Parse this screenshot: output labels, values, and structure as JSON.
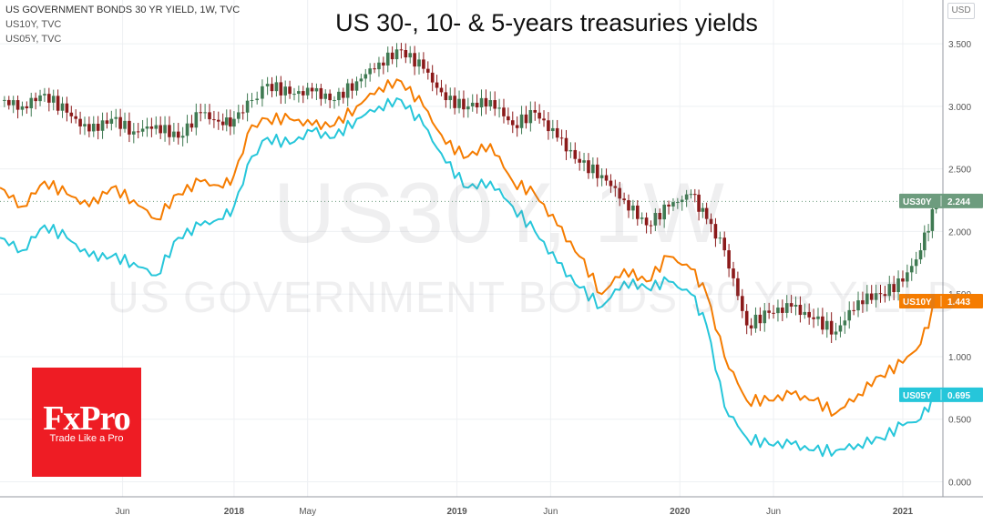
{
  "header": {
    "title": "US 30-, 10- & 5-years treasuries yields",
    "legend": [
      "US GOVERNMENT BONDS 30 YR YIELD, 1W, TVC",
      "US10Y, TVC",
      "US05Y, TVC"
    ]
  },
  "watermark": {
    "symbol": "US30Y, 1W",
    "name": "US GOVERNMENT BONDS 30 YR YIELD"
  },
  "logo": {
    "brand": "FxPro",
    "tagline": "Trade Like a Pro"
  },
  "currency_label": "USD",
  "colors": {
    "us30y": "#6d9c7e",
    "us10y": "#f57c00",
    "us05y": "#26c6da",
    "candle_up": "#3f7a52",
    "candle_down": "#8b1a1a",
    "logo_bg": "#ee1c24"
  },
  "chart_data": {
    "type": "line",
    "title": "US 30-, 10- & 5-years treasuries yields",
    "x_labels": [
      "Jun",
      "2018",
      "May",
      "2019",
      "Jun",
      "2020",
      "Jun",
      "2021"
    ],
    "x_label_pos": [
      0.5,
      1.0,
      1.33,
      2.0,
      2.42,
      3.0,
      3.42,
      4.0
    ],
    "x_range": [
      -0.05,
      4.18
    ],
    "ylim": [
      -0.12,
      3.85
    ],
    "y_ticks": [
      0.0,
      0.5,
      1.0,
      1.5,
      2.0,
      2.5,
      3.0,
      3.5
    ],
    "y_tick_labels": [
      "0.000",
      "0.500",
      "1.000",
      "1.500",
      "2.000",
      "2.500",
      "3.000",
      "3.500"
    ],
    "grid": true,
    "series": [
      {
        "name": "US30Y",
        "style": "candlestick",
        "last_value": "2.244",
        "x": [
          -0.05,
          0.05,
          0.15,
          0.25,
          0.35,
          0.45,
          0.55,
          0.65,
          0.75,
          0.85,
          0.95,
          1.0,
          1.08,
          1.15,
          1.25,
          1.35,
          1.45,
          1.55,
          1.65,
          1.75,
          1.85,
          1.95,
          2.05,
          2.15,
          2.25,
          2.35,
          2.45,
          2.55,
          2.65,
          2.75,
          2.85,
          2.95,
          3.05,
          3.12,
          3.2,
          3.3,
          3.4,
          3.5,
          3.6,
          3.7,
          3.8,
          3.9,
          4.0,
          4.08,
          4.15
        ],
        "y": [
          3.05,
          3.0,
          3.1,
          2.95,
          2.8,
          2.9,
          2.8,
          2.85,
          2.75,
          2.95,
          2.85,
          2.9,
          3.05,
          3.18,
          3.1,
          3.12,
          3.05,
          3.2,
          3.35,
          3.45,
          3.3,
          3.05,
          3.0,
          3.05,
          2.85,
          2.95,
          2.75,
          2.55,
          2.45,
          2.25,
          2.05,
          2.2,
          2.3,
          2.1,
          1.85,
          1.25,
          1.35,
          1.4,
          1.3,
          1.2,
          1.45,
          1.5,
          1.6,
          1.85,
          2.24
        ]
      },
      {
        "name": "US10Y",
        "style": "line",
        "last_value": "1.443",
        "x": [
          -0.05,
          0.05,
          0.15,
          0.25,
          0.35,
          0.45,
          0.55,
          0.65,
          0.75,
          0.85,
          0.95,
          1.0,
          1.08,
          1.15,
          1.25,
          1.35,
          1.45,
          1.55,
          1.65,
          1.75,
          1.85,
          1.95,
          2.05,
          2.15,
          2.25,
          2.35,
          2.45,
          2.55,
          2.65,
          2.75,
          2.85,
          2.95,
          3.05,
          3.12,
          3.2,
          3.3,
          3.4,
          3.5,
          3.6,
          3.7,
          3.8,
          3.9,
          4.0,
          4.08,
          4.15
        ],
        "y": [
          2.35,
          2.2,
          2.4,
          2.3,
          2.2,
          2.35,
          2.25,
          2.1,
          2.3,
          2.4,
          2.35,
          2.45,
          2.85,
          2.9,
          2.9,
          2.85,
          2.85,
          3.0,
          3.15,
          3.2,
          3.0,
          2.7,
          2.6,
          2.7,
          2.4,
          2.3,
          2.05,
          1.8,
          1.5,
          1.7,
          1.6,
          1.8,
          1.7,
          1.5,
          1.0,
          0.65,
          0.65,
          0.7,
          0.65,
          0.55,
          0.7,
          0.85,
          0.95,
          1.1,
          1.44
        ]
      },
      {
        "name": "US05Y",
        "style": "line",
        "last_value": "0.695",
        "x": [
          -0.05,
          0.05,
          0.15,
          0.25,
          0.35,
          0.45,
          0.55,
          0.65,
          0.75,
          0.85,
          0.95,
          1.0,
          1.08,
          1.15,
          1.25,
          1.35,
          1.45,
          1.55,
          1.65,
          1.75,
          1.85,
          1.95,
          2.05,
          2.15,
          2.25,
          2.35,
          2.45,
          2.55,
          2.65,
          2.75,
          2.85,
          2.95,
          3.05,
          3.12,
          3.2,
          3.3,
          3.4,
          3.5,
          3.6,
          3.7,
          3.8,
          3.9,
          4.0,
          4.08,
          4.15
        ],
        "y": [
          1.95,
          1.85,
          2.05,
          1.95,
          1.8,
          1.8,
          1.75,
          1.65,
          1.95,
          2.05,
          2.1,
          2.2,
          2.6,
          2.75,
          2.7,
          2.8,
          2.75,
          2.9,
          3.0,
          3.05,
          2.85,
          2.55,
          2.35,
          2.4,
          2.2,
          2.0,
          1.75,
          1.55,
          1.4,
          1.6,
          1.55,
          1.6,
          1.5,
          1.25,
          0.6,
          0.35,
          0.3,
          0.3,
          0.25,
          0.25,
          0.3,
          0.35,
          0.45,
          0.5,
          0.7
        ]
      }
    ]
  }
}
